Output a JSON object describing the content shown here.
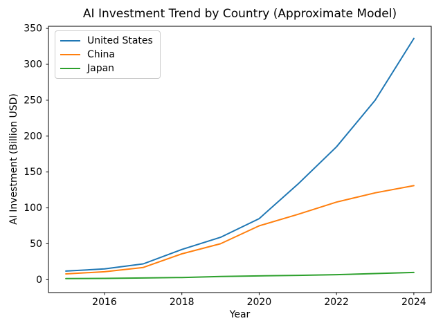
{
  "window": {
    "background": "#ffffff"
  },
  "chart_data": {
    "type": "line",
    "title": "AI Investment Trend by Country (Approximate Model)",
    "xlabel": "Year",
    "ylabel": "AI Investment (Billion USD)",
    "x": [
      2015,
      2016,
      2017,
      2018,
      2019,
      2020,
      2021,
      2022,
      2023,
      2024
    ],
    "series": [
      {
        "name": "United States",
        "color": "#1f77b4",
        "values": [
          12,
          15,
          22,
          42,
          59,
          85,
          133,
          185,
          250,
          336
        ]
      },
      {
        "name": "China",
        "color": "#ff7f0e",
        "values": [
          8,
          11,
          17,
          36,
          50,
          75,
          91,
          108,
          121,
          131
        ]
      },
      {
        "name": "Japan",
        "color": "#2ca02c",
        "values": [
          1.5,
          1.8,
          2.3,
          3,
          4.5,
          5.2,
          6,
          7,
          8.5,
          10
        ]
      }
    ],
    "xticks": [
      2016,
      2018,
      2020,
      2022,
      2024
    ],
    "yticks": [
      0,
      50,
      100,
      150,
      200,
      250,
      300,
      350
    ],
    "xlim": [
      2014.55,
      2024.45
    ],
    "ylim": [
      -18,
      353
    ],
    "grid": false,
    "legend_position": "upper left"
  },
  "colors": {
    "spine": "#000000",
    "tick": "#000000",
    "text": "#000000",
    "legend_border": "#cccccc"
  }
}
